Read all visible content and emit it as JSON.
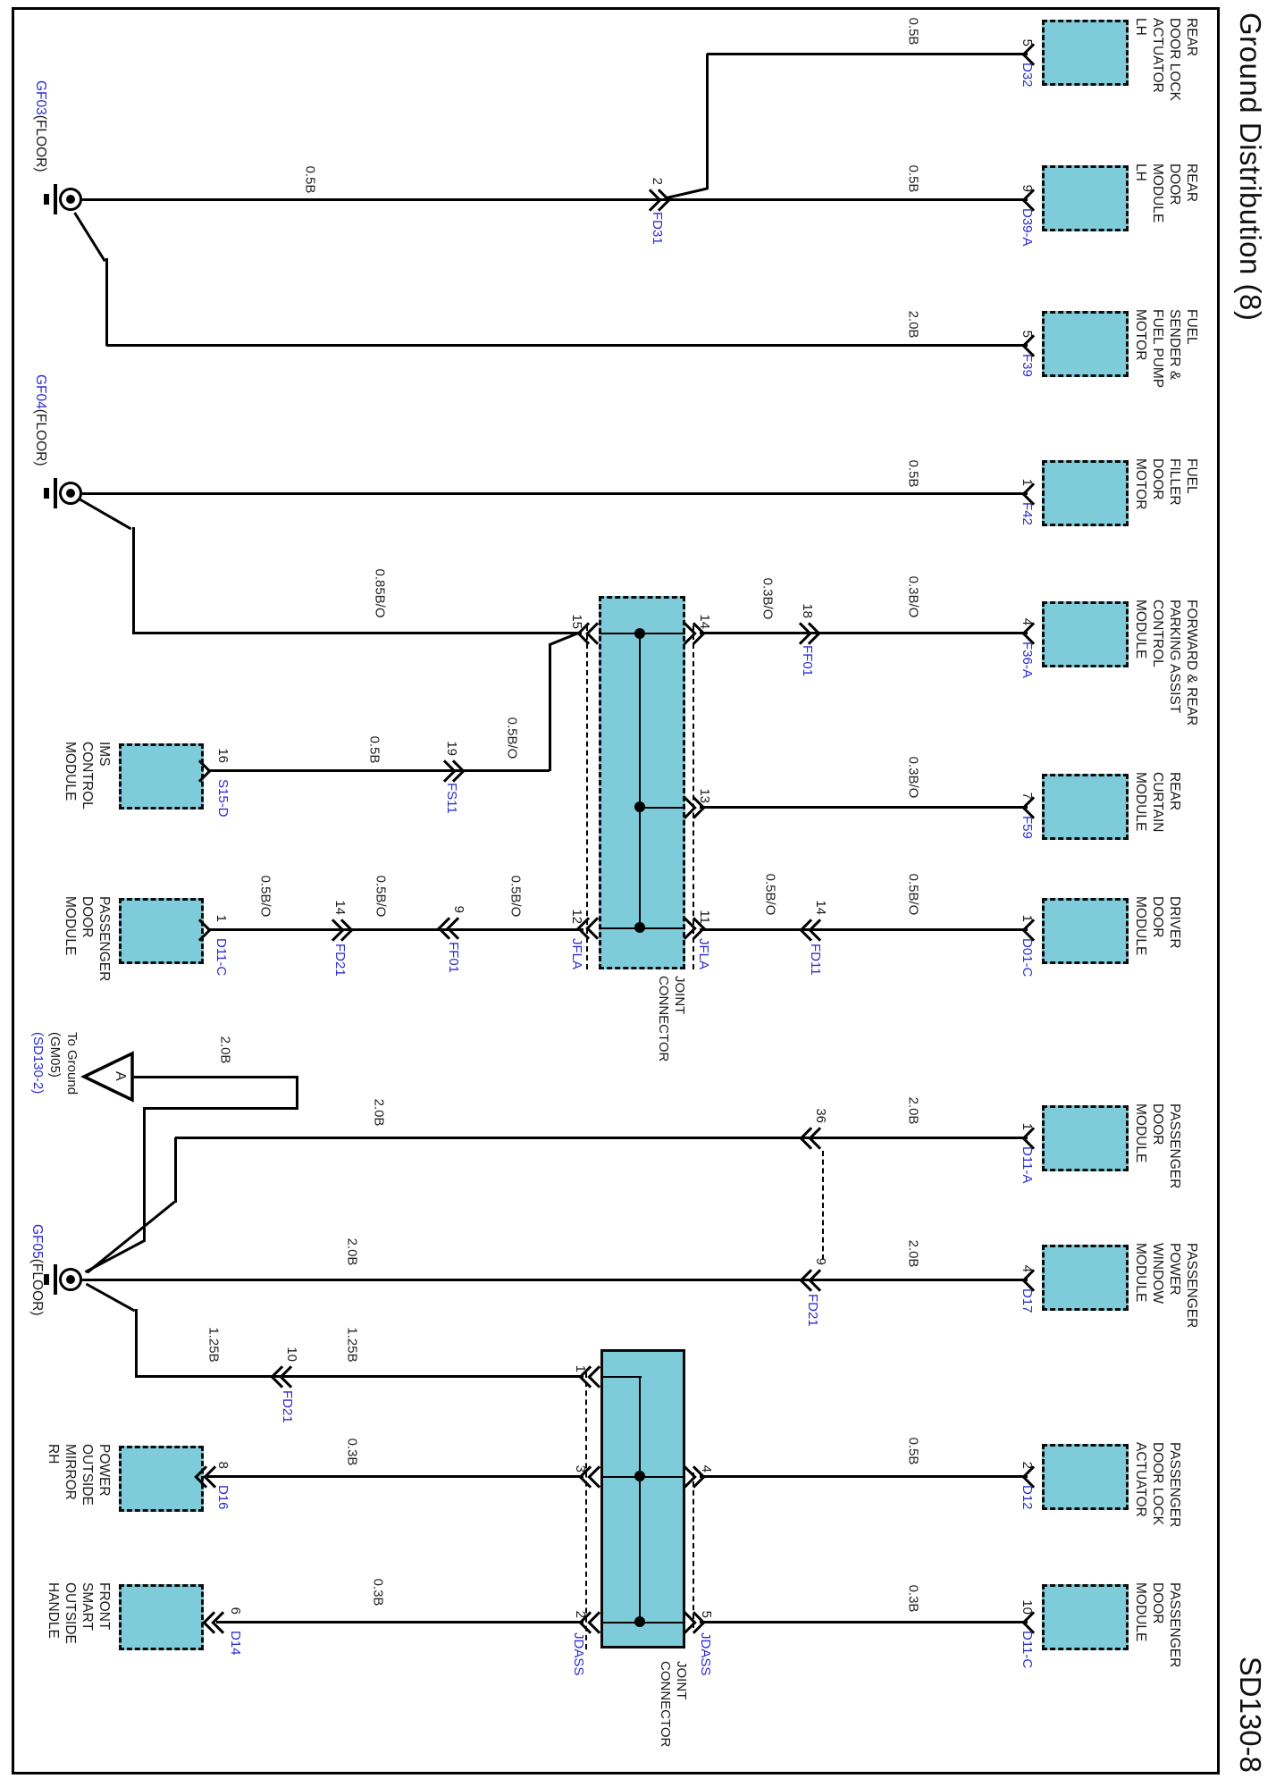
{
  "title": "Ground Distribution (8)",
  "page_code": "SD130-8",
  "jc_caption": [
    "JOINT",
    "CONNECTOR"
  ],
  "colors": {
    "block_fill": "#7ecbd9",
    "connector_blue": "#2b2bd2",
    "line_black": "#000000"
  },
  "grounds": {
    "gf03": {
      "id": "GF03",
      "loc": "(FLOOR)"
    },
    "gf04": {
      "id": "GF04",
      "loc": "(FLOOR)"
    },
    "gf05": {
      "id": "GF05",
      "loc": "(FLOOR)"
    }
  },
  "to_ground": {
    "marker": "A",
    "lines": [
      "To Ground",
      "(GM05)"
    ],
    "ref": "(SD130-2)"
  },
  "components_top": [
    {
      "pin": "5",
      "conn": "D32",
      "name": [
        "REAR",
        "DOOR LOCK",
        "ACTUATOR",
        "LH"
      ]
    },
    {
      "pin": "9",
      "conn": "D39-A",
      "name": [
        "REAR",
        "DOOR",
        "MODULE",
        "LH"
      ]
    },
    {
      "pin": "5",
      "conn": "F39",
      "name": [
        "FUEL",
        "SENDER &",
        "FUEL PUMP",
        "MOTOR"
      ]
    },
    {
      "pin": "1",
      "conn": "F42",
      "name": [
        "FUEL",
        "FILLER",
        "DOOR",
        "MOTOR"
      ]
    },
    {
      "pin": "4",
      "conn": "F36-A",
      "name": [
        "FORWARD & REAR",
        "PARKING ASSIST",
        "CONTROL",
        "MODULE"
      ]
    },
    {
      "pin": "7",
      "conn": "F59",
      "name": [
        "REAR",
        "CURTAIN",
        "MODULE"
      ]
    },
    {
      "pin": "1",
      "conn": "D01-C",
      "name": [
        "DRIVER",
        "DOOR",
        "MODULE"
      ]
    },
    {
      "pin": "1",
      "conn": "D11-A",
      "name": [
        "PASSENGER",
        "DOOR",
        "MODULE"
      ]
    },
    {
      "pin": "4",
      "conn": "D17",
      "name": [
        "PASSENGER",
        "POWER",
        "WINDOW",
        "MODULE"
      ]
    },
    {
      "pin": "2",
      "conn": "D12",
      "name": [
        "PASSENGER",
        "DOOR LOCK",
        "ACTUATOR"
      ]
    },
    {
      "pin": "10",
      "conn": "D11-C",
      "name": [
        "PASSENGER",
        "DOOR",
        "MODULE"
      ]
    }
  ],
  "components_bottom": [
    {
      "pin": "16",
      "conn": "S15-D",
      "name": [
        "IMS",
        "CONTROL",
        "MODULE"
      ]
    },
    {
      "pin": "1",
      "conn": "D11-C",
      "name": [
        "PASSENGER",
        "DOOR",
        "MODULE"
      ]
    },
    {
      "pin": "8",
      "conn": "D16",
      "name": [
        "POWER",
        "OUTSIDE",
        "MIRROR",
        "RH"
      ]
    },
    {
      "pin": "6",
      "conn": "D14",
      "name": [
        "FRONT",
        "SMART",
        "OUTSIDE",
        "HANDLE"
      ]
    }
  ],
  "inline_connectors": [
    {
      "pin": "2",
      "name": "FD31"
    },
    {
      "pin": "19",
      "name": "FS11"
    },
    {
      "pin": "18",
      "name": "FF01"
    },
    {
      "pin": "9",
      "name": "FF01"
    },
    {
      "pin": "14",
      "name": "FD21"
    },
    {
      "pin": "14",
      "name": "FD11"
    },
    {
      "pin": "36",
      "name": ""
    },
    {
      "pin": "9",
      "name": "FD21"
    },
    {
      "pin": "10",
      "name": "FD21"
    }
  ],
  "joint_connectors": {
    "jfla": {
      "label": "JFLA",
      "pins": {
        "p15": "15",
        "p14": "14",
        "p13": "13",
        "p12": "12",
        "p11": "11"
      }
    },
    "jdass": {
      "label": "JDASS",
      "pins": {
        "p1": "1",
        "p3": "3",
        "p2": "2",
        "p4": "4",
        "p5": "5"
      }
    }
  },
  "wire_labels": [
    "0.5B",
    "0.5B",
    "2.0B",
    "0.5B",
    "0.3B/O",
    "0.3B/O",
    "0.5B/O",
    "2.0B",
    "2.0B",
    "0.5B",
    "0.3B",
    "0.3B/O",
    "0.5B/O",
    "0.5B",
    "0.85B/O",
    "0.5B",
    "0.5B/O",
    "0.5B/O",
    "0.5B/O",
    "0.5B/O",
    "2.0B",
    "2.0B",
    "2.0B",
    "1.25B",
    "1.25B",
    "0.3B",
    "0.3B"
  ]
}
